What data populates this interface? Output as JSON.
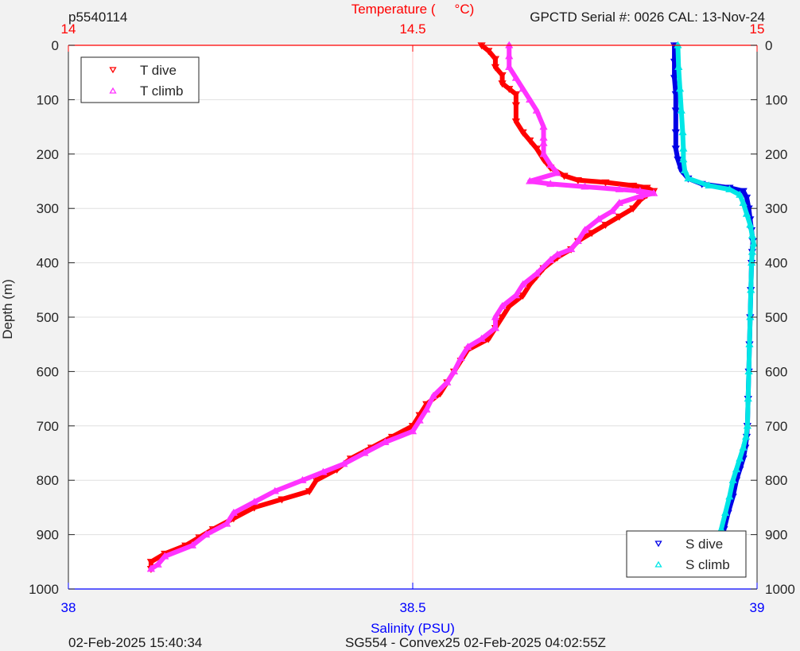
{
  "header": {
    "profile_id": "p5540114",
    "serial_info": "GPCTD Serial #: 0026 CAL: 13-Nov-24"
  },
  "footer": {
    "timestamp": "02-Feb-2025 15:40:34",
    "mission": "SG554 - Convex25 02-Feb-2025 04:02:55Z"
  },
  "colors": {
    "t_dive": "#ff0000",
    "t_climb": "#ff33ff",
    "s_dive": "#0000e6",
    "s_climb": "#00e6e6",
    "top_axis": "#ff0000",
    "bottom_axis": "#0000ff",
    "grid": "#e0e0e0",
    "plot_bg": "#ffffff"
  },
  "chart_data": {
    "type": "scatter",
    "grid": true,
    "y_axis": {
      "label": "Depth (m)",
      "range": [
        0,
        1000
      ],
      "reversed": true,
      "ticks": [
        0,
        100,
        200,
        300,
        400,
        500,
        600,
        700,
        800,
        900,
        1000
      ],
      "tick_labels": [
        "0",
        "100",
        "200",
        "300",
        "400",
        "500",
        "600",
        "700",
        "800",
        "900",
        "1000"
      ],
      "mirrored_right": true
    },
    "top_axis": {
      "label": "Temperature (°C)",
      "label_prefix": "Temperature (",
      "label_suffix": "°C)",
      "range": [
        14,
        15
      ],
      "ticks": [
        14,
        14.5,
        15
      ],
      "tick_labels": [
        "14",
        "14.5",
        "15"
      ]
    },
    "bottom_axis": {
      "label": "Salinity (PSU)",
      "range": [
        38,
        39
      ],
      "ticks": [
        38,
        38.5,
        39
      ],
      "tick_labels": [
        "38",
        "38.5",
        "39"
      ]
    },
    "legends": [
      {
        "placement": "top-left",
        "entries": [
          {
            "label": "T dive",
            "series": "t_dive",
            "marker": "triangle-down"
          },
          {
            "label": "T climb",
            "series": "t_climb",
            "marker": "triangle-up"
          }
        ]
      },
      {
        "placement": "bottom-right",
        "entries": [
          {
            "label": "S dive",
            "series": "s_dive",
            "marker": "triangle-down"
          },
          {
            "label": "S climb",
            "series": "s_climb",
            "marker": "triangle-up"
          }
        ]
      }
    ],
    "series": [
      {
        "name": "T dive",
        "key": "t_dive",
        "axis": "top",
        "marker": "triangle-down",
        "points": [
          [
            14.6,
            0
          ],
          [
            14.61,
            10
          ],
          [
            14.62,
            25
          ],
          [
            14.62,
            40
          ],
          [
            14.63,
            55
          ],
          [
            14.63,
            70
          ],
          [
            14.64,
            80
          ],
          [
            14.65,
            90
          ],
          [
            14.65,
            110
          ],
          [
            14.65,
            140
          ],
          [
            14.66,
            160
          ],
          [
            14.67,
            175
          ],
          [
            14.68,
            190
          ],
          [
            14.69,
            210
          ],
          [
            14.7,
            225
          ],
          [
            14.72,
            240
          ],
          [
            14.74,
            248
          ],
          [
            14.78,
            252
          ],
          [
            14.82,
            258
          ],
          [
            14.84,
            262
          ],
          [
            14.85,
            268
          ],
          [
            14.84,
            275
          ],
          [
            14.83,
            285
          ],
          [
            14.82,
            300
          ],
          [
            14.8,
            315
          ],
          [
            14.78,
            330
          ],
          [
            14.76,
            345
          ],
          [
            14.74,
            360
          ],
          [
            14.73,
            375
          ],
          [
            14.71,
            390
          ],
          [
            14.69,
            410
          ],
          [
            14.68,
            425
          ],
          [
            14.67,
            440
          ],
          [
            14.66,
            460
          ],
          [
            14.64,
            480
          ],
          [
            14.63,
            500
          ],
          [
            14.62,
            520
          ],
          [
            14.61,
            540
          ],
          [
            14.58,
            560
          ],
          [
            14.57,
            580
          ],
          [
            14.56,
            600
          ],
          [
            14.55,
            620
          ],
          [
            14.54,
            640
          ],
          [
            14.52,
            660
          ],
          [
            14.51,
            680
          ],
          [
            14.5,
            700
          ],
          [
            14.47,
            720
          ],
          [
            14.44,
            740
          ],
          [
            14.41,
            760
          ],
          [
            14.39,
            780
          ],
          [
            14.36,
            800
          ],
          [
            14.35,
            820
          ],
          [
            14.31,
            835
          ],
          [
            14.27,
            850
          ],
          [
            14.24,
            870
          ],
          [
            14.21,
            890
          ],
          [
            14.19,
            905
          ],
          [
            14.17,
            920
          ],
          [
            14.14,
            935
          ],
          [
            14.12,
            950
          ],
          [
            14.12,
            963
          ]
        ]
      },
      {
        "name": "T climb",
        "key": "t_climb",
        "axis": "top",
        "marker": "triangle-up",
        "points": [
          [
            14.64,
            0
          ],
          [
            14.64,
            20
          ],
          [
            14.64,
            40
          ],
          [
            14.65,
            60
          ],
          [
            14.66,
            80
          ],
          [
            14.67,
            100
          ],
          [
            14.68,
            120
          ],
          [
            14.69,
            150
          ],
          [
            14.69,
            170
          ],
          [
            14.69,
            180
          ],
          [
            14.69,
            200
          ],
          [
            14.7,
            220
          ],
          [
            14.71,
            235
          ],
          [
            14.67,
            250
          ],
          [
            14.7,
            255
          ],
          [
            14.75,
            260
          ],
          [
            14.8,
            265
          ],
          [
            14.83,
            268
          ],
          [
            14.85,
            272
          ],
          [
            14.83,
            278
          ],
          [
            14.8,
            290
          ],
          [
            14.79,
            305
          ],
          [
            14.77,
            320
          ],
          [
            14.75,
            340
          ],
          [
            14.74,
            360
          ],
          [
            14.73,
            375
          ],
          [
            14.71,
            385
          ],
          [
            14.7,
            395
          ],
          [
            14.68,
            420
          ],
          [
            14.66,
            440
          ],
          [
            14.65,
            460
          ],
          [
            14.63,
            480
          ],
          [
            14.62,
            500
          ],
          [
            14.62,
            520
          ],
          [
            14.6,
            540
          ],
          [
            14.58,
            555
          ],
          [
            14.57,
            575
          ],
          [
            14.56,
            600
          ],
          [
            14.55,
            620
          ],
          [
            14.53,
            645
          ],
          [
            14.52,
            670
          ],
          [
            14.51,
            690
          ],
          [
            14.5,
            710
          ],
          [
            14.46,
            730
          ],
          [
            14.43,
            750
          ],
          [
            14.4,
            770
          ],
          [
            14.37,
            785
          ],
          [
            14.34,
            800
          ],
          [
            14.3,
            820
          ],
          [
            14.27,
            840
          ],
          [
            14.24,
            860
          ],
          [
            14.23,
            880
          ],
          [
            14.2,
            900
          ],
          [
            14.18,
            920
          ],
          [
            14.14,
            940
          ],
          [
            14.13,
            955
          ],
          [
            14.12,
            963
          ]
        ]
      },
      {
        "name": "S dive",
        "key": "s_dive",
        "axis": "bottom",
        "marker": "triangle-down",
        "points": [
          [
            38.88,
            0
          ],
          [
            38.88,
            30
          ],
          [
            38.88,
            60
          ],
          [
            38.882,
            90
          ],
          [
            38.882,
            120
          ],
          [
            38.882,
            160
          ],
          [
            38.882,
            190
          ],
          [
            38.885,
            210
          ],
          [
            38.89,
            230
          ],
          [
            38.9,
            245
          ],
          [
            38.92,
            255
          ],
          [
            38.96,
            262
          ],
          [
            38.98,
            268
          ],
          [
            38.985,
            280
          ],
          [
            38.988,
            300
          ],
          [
            38.99,
            320
          ],
          [
            38.992,
            340
          ],
          [
            38.994,
            360
          ],
          [
            38.993,
            380
          ],
          [
            38.992,
            400
          ],
          [
            38.991,
            450
          ],
          [
            38.99,
            500
          ],
          [
            38.989,
            550
          ],
          [
            38.988,
            600
          ],
          [
            38.987,
            650
          ],
          [
            38.986,
            700
          ],
          [
            38.985,
            720
          ],
          [
            38.983,
            740
          ],
          [
            38.98,
            760
          ],
          [
            38.975,
            780
          ],
          [
            38.97,
            800
          ],
          [
            38.965,
            830
          ],
          [
            38.958,
            860
          ],
          [
            38.952,
            890
          ],
          [
            38.948,
            920
          ],
          [
            38.945,
            945
          ],
          [
            38.943,
            963
          ]
        ]
      },
      {
        "name": "S climb",
        "key": "s_climb",
        "axis": "bottom",
        "marker": "triangle-up",
        "points": [
          [
            38.885,
            0
          ],
          [
            38.886,
            40
          ],
          [
            38.888,
            80
          ],
          [
            38.89,
            120
          ],
          [
            38.892,
            160
          ],
          [
            38.893,
            190
          ],
          [
            38.893,
            210
          ],
          [
            38.895,
            230
          ],
          [
            38.9,
            245
          ],
          [
            38.93,
            258
          ],
          [
            38.96,
            265
          ],
          [
            38.975,
            275
          ],
          [
            38.98,
            290
          ],
          [
            38.985,
            310
          ],
          [
            38.99,
            330
          ],
          [
            38.993,
            350
          ],
          [
            38.995,
            365
          ],
          [
            38.993,
            380
          ],
          [
            38.992,
            400
          ],
          [
            38.991,
            450
          ],
          [
            38.99,
            500
          ],
          [
            38.989,
            550
          ],
          [
            38.988,
            600
          ],
          [
            38.987,
            650
          ],
          [
            38.986,
            700
          ],
          [
            38.984,
            720
          ],
          [
            38.98,
            740
          ],
          [
            38.975,
            760
          ],
          [
            38.97,
            780
          ],
          [
            38.965,
            800
          ],
          [
            38.96,
            830
          ],
          [
            38.954,
            860
          ],
          [
            38.948,
            890
          ],
          [
            38.944,
            915
          ],
          [
            38.94,
            940
          ],
          [
            38.937,
            963
          ]
        ]
      }
    ]
  }
}
